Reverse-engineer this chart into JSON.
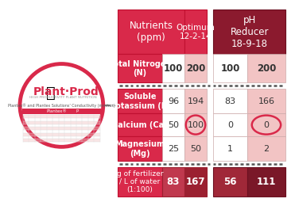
{
  "nutrients_label": "Nutrients\n(ppm)",
  "optimum_label": "Optimum\n12-2-14",
  "ph_label": "pH\nReducer\n18-9-18",
  "row_labels": [
    "Total Nitrogen\n(N)",
    "Soluble\nPotassium (K)",
    "Calcium (Ca)",
    "Magnesium\n(Mg)"
  ],
  "fertilizer_label": "g of fertilizer\n/ L of water\n(1:100)",
  "opt_low": [
    100,
    96,
    50,
    25
  ],
  "opt_high": [
    200,
    194,
    100,
    50
  ],
  "ph_low": [
    100,
    83,
    0,
    1
  ],
  "ph_high": [
    200,
    166,
    0,
    2
  ],
  "fert_opt_low": 83,
  "fert_opt_high": 167,
  "fert_ph_low": 56,
  "fert_ph_high": 111,
  "c_red": "#d9294a",
  "c_dark_red": "#8b1a2e",
  "c_med_red": "#c0394e",
  "c_white": "#ffffff",
  "c_light_pink": "#f2c4c4",
  "c_fert_med": "#c0394e",
  "c_fert_dark": "#9b2030",
  "c_ph_fert1": "#a02838",
  "c_ph_fert2": "#7a1828",
  "c_circle": "#d9294a",
  "c_dash": "#555555",
  "c_dark_text": "#333333"
}
